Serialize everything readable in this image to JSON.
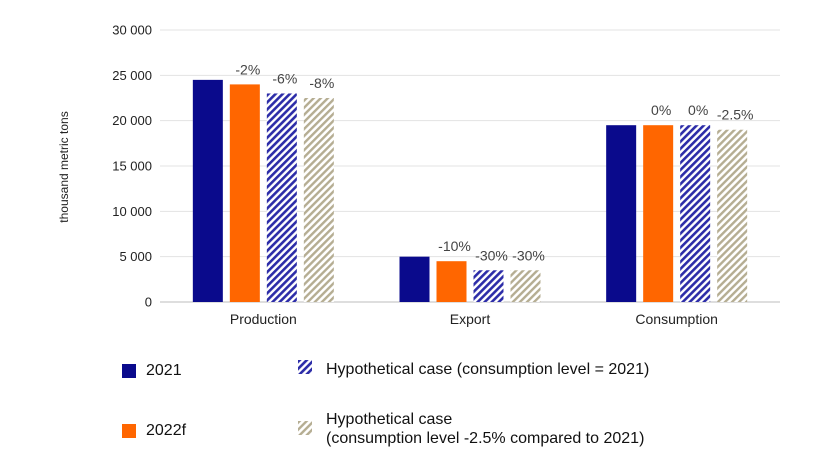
{
  "chart_data": {
    "type": "bar",
    "ylabel": "thousand metric tons",
    "ylim": [
      0,
      30000
    ],
    "yticks": [
      0,
      5000,
      10000,
      15000,
      20000,
      25000,
      30000
    ],
    "ytick_labels": [
      "0",
      "5 000",
      "10 000",
      "15 000",
      "20 000",
      "25 000",
      "30 000"
    ],
    "grid": true,
    "categories": [
      "Production",
      "Export",
      "Consumption"
    ],
    "series": [
      {
        "name": "2021",
        "color": "#0a0a8c",
        "pattern": "solid",
        "values": [
          24500,
          5000,
          19500
        ],
        "labels": [
          "",
          "",
          ""
        ]
      },
      {
        "name": "2022f",
        "color": "#ff6600",
        "pattern": "solid",
        "values": [
          24000,
          4500,
          19500
        ],
        "labels": [
          "-2%",
          "-10%",
          "0%"
        ]
      },
      {
        "name": "Hypothetical case (consumption level = 2021)",
        "color": "#2c2ca8",
        "pattern": "hatch",
        "values": [
          23000,
          3500,
          19500
        ],
        "labels": [
          "-6%",
          "-30%",
          "0%"
        ]
      },
      {
        "name": "Hypothetical case (consumption level -2.5% compared to 2021)",
        "color": "#b5ad92",
        "pattern": "hatch",
        "values": [
          22500,
          3500,
          19000
        ],
        "labels": [
          "-8%",
          "-30%",
          "-2.5%"
        ]
      }
    ]
  },
  "legend": {
    "item_2021": "2021",
    "item_2022f": "2022f",
    "item_hyp1": "Hypothetical case (consumption level = 2021)",
    "item_hyp2_line1": "Hypothetical case",
    "item_hyp2_line2": "(consumption level -2.5% compared to 2021)"
  }
}
